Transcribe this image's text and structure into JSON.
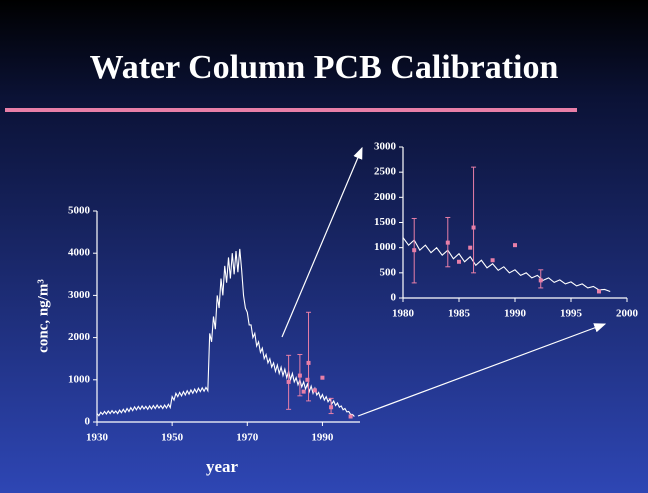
{
  "chart_data": [
    {
      "type": "line",
      "title": "Water Column PCB Calibration",
      "xlabel": "year",
      "ylabel": "conc, ng/m³",
      "xlim": [
        1930,
        2000
      ],
      "ylim": [
        0,
        5000
      ],
      "xticks": [
        1930,
        1950,
        1970,
        1990
      ],
      "yticks": [
        0,
        1000,
        2000,
        3000,
        4000,
        5000
      ],
      "series": [
        {
          "type": "line",
          "color": "#ffffff",
          "x": [
            1930,
            1930.5,
            1931,
            1931.5,
            1932,
            1932.5,
            1933,
            1933.5,
            1934,
            1934.5,
            1935,
            1935.5,
            1936,
            1936.5,
            1937,
            1937.5,
            1938,
            1938.5,
            1939,
            1939.5,
            1940,
            1940.5,
            1941,
            1941.5,
            1942,
            1942.5,
            1943,
            1943.5,
            1944,
            1944.5,
            1945,
            1945.5,
            1946,
            1946.5,
            1947,
            1947.5,
            1948,
            1948.5,
            1949,
            1949.5,
            1950,
            1950.5,
            1951,
            1951.5,
            1952,
            1952.5,
            1953,
            1953.5,
            1954,
            1954.5,
            1955,
            1955.5,
            1956,
            1956.5,
            1957,
            1957.5,
            1958,
            1958.5,
            1959,
            1959.5,
            1960,
            1960.5,
            1961,
            1961.5,
            1962,
            1962.5,
            1963,
            1963.5,
            1964,
            1964.5,
            1965,
            1965.5,
            1966,
            1966.5,
            1967,
            1967.5,
            1968,
            1968.5,
            1969,
            1969.5,
            1970,
            1970.5,
            1971,
            1971.5,
            1972,
            1972.5,
            1973,
            1973.5,
            1974,
            1974.5,
            1975,
            1975.5,
            1976,
            1976.5,
            1977,
            1977.5,
            1978,
            1978.5,
            1979,
            1979.5,
            1980,
            1980.5,
            1981,
            1981.5,
            1982,
            1982.5,
            1983,
            1983.5,
            1984,
            1984.5,
            1985,
            1985.5,
            1986,
            1986.5,
            1987,
            1987.5,
            1988,
            1988.5,
            1989,
            1989.5,
            1990,
            1990.5,
            1991,
            1991.5,
            1992,
            1992.5,
            1993,
            1993.5,
            1994,
            1994.5,
            1995,
            1995.5,
            1996,
            1996.5,
            1997,
            1997.5,
            1998,
            1998.5
          ],
          "values": [
            200,
            150,
            230,
            180,
            250,
            190,
            260,
            200,
            270,
            210,
            260,
            200,
            280,
            220,
            300,
            230,
            320,
            250,
            340,
            270,
            360,
            290,
            370,
            300,
            380,
            310,
            370,
            300,
            380,
            310,
            390,
            320,
            400,
            330,
            390,
            320,
            400,
            330,
            420,
            340,
            600,
            520,
            680,
            600,
            700,
            620,
            720,
            640,
            740,
            660,
            760,
            680,
            780,
            700,
            800,
            720,
            810,
            730,
            820,
            740,
            2100,
            1900,
            2500,
            2200,
            3000,
            2700,
            3400,
            3000,
            3700,
            3300,
            3900,
            3400,
            4000,
            3500,
            4050,
            3550,
            4100,
            3600,
            3000,
            2700,
            2600,
            2300,
            2300,
            2000,
            2100,
            1800,
            1900,
            1650,
            1750,
            1500,
            1600,
            1400,
            1500,
            1300,
            1400,
            1200,
            1350,
            1150,
            1300,
            1100,
            1250,
            1050,
            1200,
            1000,
            1150,
            950,
            1050,
            880,
            1000,
            830,
            950,
            780,
            900,
            720,
            850,
            680,
            800,
            640,
            700,
            560,
            650,
            520,
            600,
            480,
            550,
            430,
            500,
            390,
            450,
            350,
            380,
            290,
            320,
            240,
            250,
            180,
            180,
            130
          ]
        },
        {
          "type": "scatter",
          "color": "#e87fa8",
          "x": [
            1981,
            1984,
            1985,
            1986,
            1986.3,
            1988,
            1990,
            1992.3,
            1997.5
          ],
          "values": [
            950,
            1100,
            720,
            1000,
            1400,
            750,
            1050,
            350,
            130
          ],
          "lower": [
            300,
            620,
            null,
            null,
            500,
            null,
            null,
            200,
            null
          ],
          "upper": [
            1580,
            1600,
            null,
            null,
            2600,
            null,
            null,
            560,
            null
          ]
        }
      ]
    },
    {
      "type": "line",
      "xlim": [
        1980,
        2000
      ],
      "ylim": [
        0,
        3000
      ],
      "xticks": [
        1980,
        1985,
        1990,
        1995,
        2000
      ],
      "yticks": [
        0,
        500,
        1000,
        1500,
        2000,
        2500,
        3000
      ],
      "series": [
        {
          "type": "line",
          "color": "#ffffff",
          "x": [
            1980,
            1980.5,
            1981,
            1981.5,
            1982,
            1982.5,
            1983,
            1983.5,
            1984,
            1984.5,
            1985,
            1985.5,
            1986,
            1986.5,
            1987,
            1987.5,
            1988,
            1988.5,
            1989,
            1989.5,
            1990,
            1990.5,
            1991,
            1991.5,
            1992,
            1992.5,
            1993,
            1993.5,
            1994,
            1994.5,
            1995,
            1995.5,
            1996,
            1996.5,
            1997,
            1997.5,
            1998,
            1998.5
          ],
          "values": [
            1200,
            1050,
            1150,
            950,
            1050,
            900,
            1000,
            850,
            950,
            780,
            880,
            720,
            820,
            650,
            750,
            600,
            680,
            550,
            620,
            500,
            560,
            450,
            500,
            400,
            450,
            350,
            400,
            310,
            360,
            280,
            320,
            240,
            280,
            200,
            230,
            160,
            170,
            130
          ]
        },
        {
          "type": "scatter",
          "color": "#e87fa8",
          "x": [
            1981,
            1984,
            1985,
            1986,
            1986.3,
            1988,
            1990,
            1992.3,
            1997.5
          ],
          "values": [
            950,
            1100,
            720,
            1000,
            1400,
            750,
            1050,
            350,
            130
          ],
          "lower": [
            300,
            620,
            null,
            null,
            500,
            null,
            null,
            200,
            null
          ],
          "upper": [
            1580,
            1600,
            null,
            null,
            2600,
            null,
            null,
            560,
            null
          ]
        }
      ]
    }
  ]
}
